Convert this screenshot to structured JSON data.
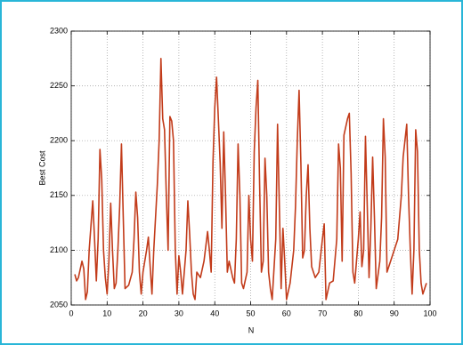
{
  "chart_data": {
    "type": "line",
    "xlabel": "N",
    "ylabel": "Best Cost",
    "color": "#c23b1a",
    "x": [
      1,
      1.5,
      2,
      3,
      3.5,
      4,
      4.5,
      5,
      6,
      6.5,
      7,
      7.5,
      8,
      8.5,
      9,
      9.5,
      10,
      10.5,
      11,
      11.5,
      12,
      12.5,
      13,
      13.5,
      14,
      14.5,
      15,
      16,
      17,
      17.5,
      18,
      18.5,
      19,
      19.5,
      20,
      21,
      21.5,
      22,
      22.5,
      23,
      24,
      24.5,
      25,
      25.5,
      26,
      26.5,
      27,
      27.5,
      28,
      28.5,
      29,
      29.5,
      30,
      30.5,
      31,
      32,
      32.5,
      33,
      33.5,
      34,
      34.5,
      35,
      36,
      37,
      38,
      38.5,
      39,
      39.5,
      40,
      40.5,
      41,
      41.5,
      42,
      42.5,
      43,
      43.5,
      44,
      45,
      45.5,
      46,
      46.5,
      47,
      47.5,
      48,
      49,
      49.5,
      50,
      50.5,
      51,
      51.5,
      52,
      52.5,
      53,
      53.5,
      54,
      54.5,
      55,
      55.5,
      56,
      57,
      57.5,
      58,
      58.5,
      59,
      59.5,
      60,
      61,
      62,
      62.5,
      63,
      63.5,
      64,
      64.5,
      65,
      65.5,
      66,
      66.5,
      67,
      68,
      69,
      70,
      70.5,
      71,
      72,
      73,
      74,
      74.5,
      75,
      75.5,
      76,
      77,
      77.5,
      78,
      78.5,
      79,
      80,
      80.5,
      81,
      81.5,
      82,
      82.5,
      83,
      83.5,
      84,
      84.5,
      85,
      86,
      86.5,
      87,
      87.5,
      88,
      89,
      90,
      91,
      92,
      92.5,
      93,
      93.5,
      94,
      94.5,
      95,
      95.5,
      96,
      96.5,
      97,
      97.5,
      98,
      99
    ],
    "values": [
      2078,
      2072,
      2075,
      2090,
      2083,
      2055,
      2062,
      2100,
      2145,
      2110,
      2072,
      2110,
      2192,
      2165,
      2100,
      2075,
      2060,
      2090,
      2143,
      2100,
      2065,
      2070,
      2100,
      2140,
      2197,
      2130,
      2065,
      2068,
      2080,
      2110,
      2153,
      2130,
      2080,
      2060,
      2080,
      2100,
      2112,
      2085,
      2060,
      2100,
      2160,
      2200,
      2275,
      2220,
      2210,
      2150,
      2100,
      2222,
      2218,
      2200,
      2100,
      2060,
      2095,
      2080,
      2060,
      2100,
      2145,
      2115,
      2080,
      2060,
      2055,
      2080,
      2075,
      2090,
      2117,
      2100,
      2080,
      2180,
      2230,
      2258,
      2220,
      2180,
      2120,
      2208,
      2150,
      2080,
      2090,
      2075,
      2070,
      2110,
      2197,
      2150,
      2070,
      2065,
      2080,
      2150,
      2110,
      2090,
      2190,
      2230,
      2255,
      2160,
      2080,
      2090,
      2184,
      2150,
      2080,
      2065,
      2055,
      2110,
      2215,
      2140,
      2065,
      2120,
      2090,
      2055,
      2070,
      2100,
      2140,
      2200,
      2246,
      2180,
      2093,
      2100,
      2150,
      2178,
      2120,
      2085,
      2075,
      2080,
      2110,
      2124,
      2055,
      2070,
      2072,
      2110,
      2197,
      2175,
      2090,
      2205,
      2220,
      2225,
      2170,
      2080,
      2070,
      2110,
      2135,
      2085,
      2100,
      2204,
      2140,
      2075,
      2120,
      2185,
      2130,
      2065,
      2090,
      2130,
      2220,
      2185,
      2080,
      2090,
      2100,
      2110,
      2150,
      2185,
      2200,
      2215,
      2150,
      2100,
      2060,
      2100,
      2210,
      2190,
      2100,
      2070,
      2060,
      2070
    ],
    "xlim": [
      0,
      100
    ],
    "xticks": [
      0,
      10,
      20,
      30,
      40,
      50,
      60,
      70,
      80,
      90,
      100
    ],
    "ylim": [
      2050,
      2300
    ],
    "yticks": [
      2050,
      2100,
      2150,
      2200,
      2250,
      2300
    ],
    "grid": true
  }
}
